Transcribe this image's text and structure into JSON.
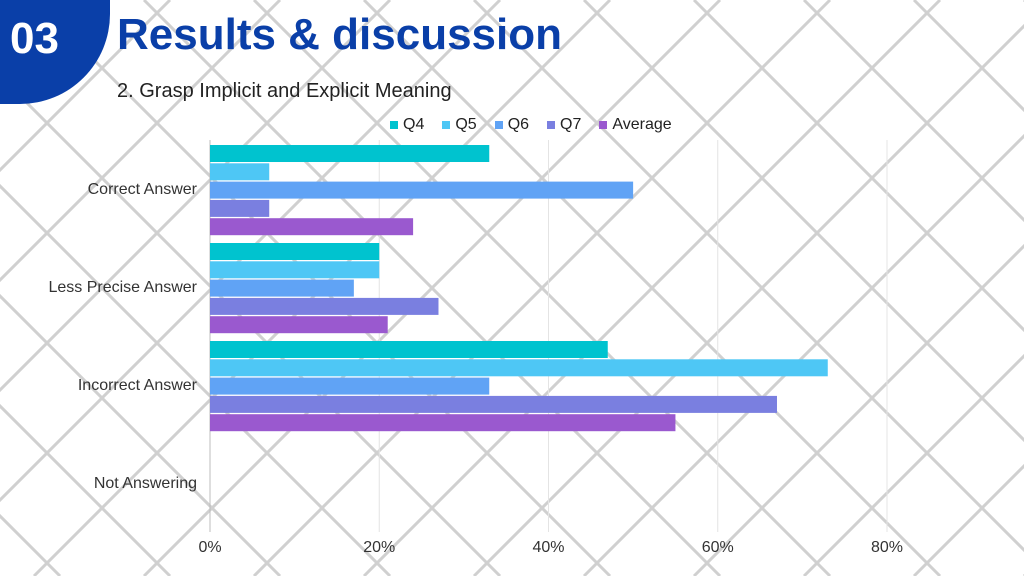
{
  "badge": {
    "number": "03"
  },
  "header": {
    "title": "Results & discussion",
    "subtitle": "2. Grasp Implicit and Explicit Meaning"
  },
  "colors": {
    "badge": "#0a3fa8",
    "title": "#0a3fa8",
    "Q4": "#00c3cf",
    "Q5": "#4ec7f5",
    "Q6": "#60a3f5",
    "Q7": "#7a7fe0",
    "Average": "#9a59cf"
  },
  "chart_data": {
    "type": "bar",
    "orientation": "horizontal",
    "categories": [
      "Correct Answer",
      "Less Precise Answer",
      "Incorrect Answer",
      "Not Answering"
    ],
    "series": [
      {
        "name": "Q4",
        "values": [
          33,
          20,
          47,
          0
        ]
      },
      {
        "name": "Q5",
        "values": [
          7,
          20,
          73,
          0
        ]
      },
      {
        "name": "Q6",
        "values": [
          50,
          17,
          33,
          0
        ]
      },
      {
        "name": "Q7",
        "values": [
          7,
          27,
          67,
          0
        ]
      },
      {
        "name": "Average",
        "values": [
          24,
          21,
          55,
          0
        ]
      }
    ],
    "x_ticks": [
      "0%",
      "20%",
      "40%",
      "60%",
      "80%"
    ],
    "xlim": [
      0,
      80
    ],
    "grid": true,
    "legend_position": "top"
  }
}
